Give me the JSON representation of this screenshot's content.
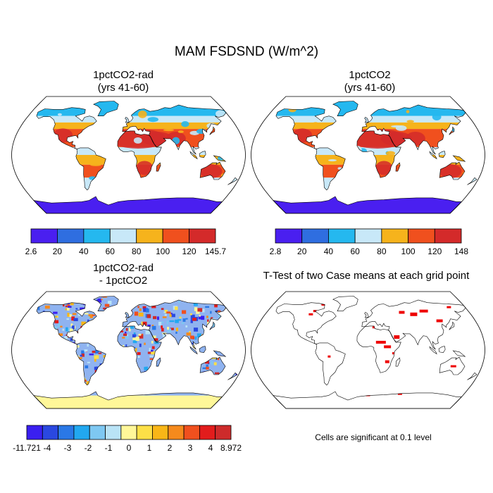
{
  "title": "MAM FSDSND (W/m^2)",
  "panels": [
    {
      "id": "p1",
      "title_line1": "1pctCO2-rad",
      "title_line2": "(yrs 41-60)"
    },
    {
      "id": "p2",
      "title_line1": "1pctCO2",
      "title_line2": "(yrs 41-60)"
    },
    {
      "id": "p3",
      "title_line1": "1pctCO2-rad",
      "title_line2": "- 1pctCO2"
    },
    {
      "id": "p4",
      "title_line1": "T-Test of two Case means at each grid point",
      "title_line2": ""
    }
  ],
  "colorbars": [
    {
      "id": "cb1",
      "colors": [
        "#4a1ff0",
        "#2f6ee0",
        "#25b8ef",
        "#c8e8f8",
        "#f6b31c",
        "#f0501e",
        "#d42a2a"
      ],
      "labels": [
        "2.6",
        "20",
        "40",
        "60",
        "80",
        "100",
        "120",
        "145.7"
      ]
    },
    {
      "id": "cb2",
      "colors": [
        "#4a1ff0",
        "#2f6ee0",
        "#25b8ef",
        "#c8e8f8",
        "#f6b31c",
        "#f0501e",
        "#d42a2a"
      ],
      "labels": [
        "2.8",
        "20",
        "40",
        "60",
        "80",
        "100",
        "120",
        "148"
      ]
    },
    {
      "id": "cb3",
      "colors": [
        "#3a1ff0",
        "#2a48e0",
        "#2a78e6",
        "#22a8f0",
        "#7ec8f2",
        "#b9e3f6",
        "#fff799",
        "#fde047",
        "#f9b617",
        "#f58a1c",
        "#f0501e",
        "#e21c1c",
        "#cd2b2b"
      ],
      "labels": [
        "-11.721",
        "-4",
        "-3",
        "-2",
        "-1",
        "0",
        "1",
        "2",
        "3",
        "4",
        "8.972"
      ]
    }
  ],
  "significance_note": "Cells are significant at 0.1 level",
  "map_colors": {
    "ocean": "#ffffff",
    "significant": "#ee0000",
    "diff_land_fill": "#8fb3f0",
    "antarctica_diff": "#fff799"
  }
}
